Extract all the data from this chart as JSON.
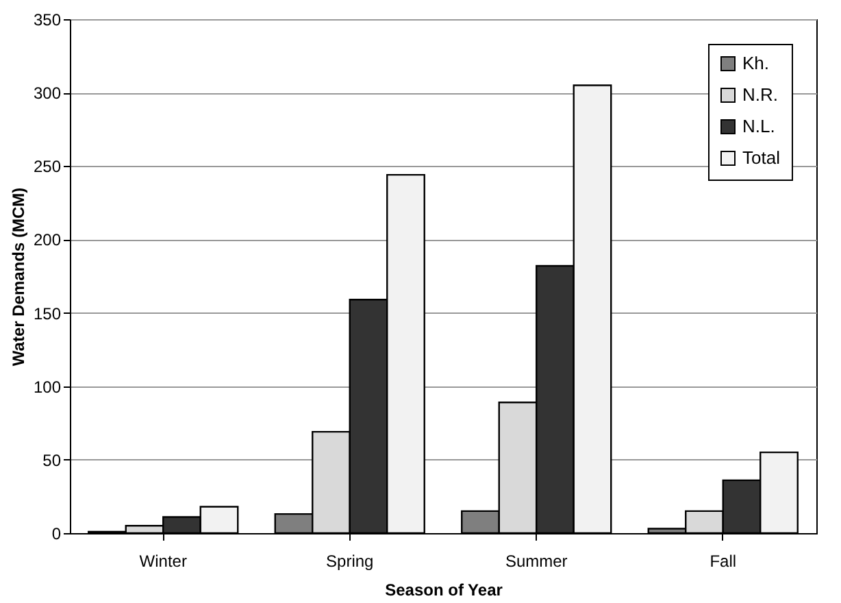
{
  "chart_data": {
    "type": "bar",
    "xlabel": "Season of Year",
    "ylabel": "Water Demands (MCM)",
    "categories": [
      "Winter",
      "Spring",
      "Summer",
      "Fall"
    ],
    "series": [
      {
        "name": "Kh.",
        "color": "#7f7f7f",
        "values": [
          1,
          13,
          15,
          3
        ]
      },
      {
        "name": "N.R.",
        "color": "#d9d9d9",
        "values": [
          5,
          69,
          89,
          15
        ]
      },
      {
        "name": "N.L.",
        "color": "#333333",
        "values": [
          11,
          159,
          182,
          36
        ]
      },
      {
        "name": "Total",
        "color": "#f2f2f2",
        "values": [
          18,
          244,
          305,
          55
        ]
      }
    ],
    "ylim": [
      0,
      350
    ],
    "yticks": [
      0,
      50,
      100,
      150,
      200,
      250,
      300,
      350
    ],
    "grid": "y",
    "legend": "top right"
  }
}
